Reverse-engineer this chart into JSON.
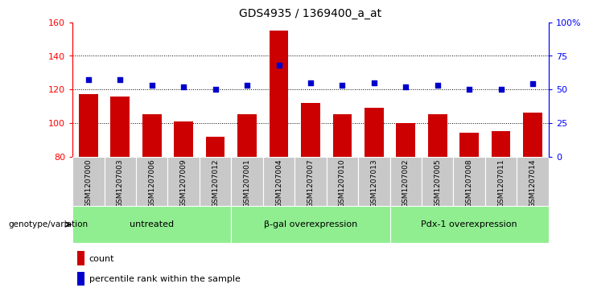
{
  "title": "GDS4935 / 1369400_a_at",
  "samples": [
    "GSM1207000",
    "GSM1207003",
    "GSM1207006",
    "GSM1207009",
    "GSM1207012",
    "GSM1207001",
    "GSM1207004",
    "GSM1207007",
    "GSM1207010",
    "GSM1207013",
    "GSM1207002",
    "GSM1207005",
    "GSM1207008",
    "GSM1207011",
    "GSM1207014"
  ],
  "counts": [
    117,
    116,
    105,
    101,
    92,
    105,
    155,
    112,
    105,
    109,
    100,
    105,
    94,
    95,
    106
  ],
  "percentiles": [
    57,
    57,
    53,
    52,
    50,
    53,
    68,
    55,
    53,
    55,
    52,
    53,
    50,
    50,
    54
  ],
  "groups": [
    {
      "label": "untreated",
      "start": 0,
      "end": 5
    },
    {
      "label": "β-gal overexpression",
      "start": 5,
      "end": 10
    },
    {
      "label": "Pdx-1 overexpression",
      "start": 10,
      "end": 15
    }
  ],
  "bar_color": "#cc0000",
  "dot_color": "#0000cc",
  "group_bg_color": "#90ee90",
  "sample_bg_color": "#c8c8c8",
  "ylim_left": [
    80,
    160
  ],
  "ylim_right": [
    0,
    100
  ],
  "yticks_left": [
    80,
    100,
    120,
    140,
    160
  ],
  "yticks_right": [
    0,
    25,
    50,
    75,
    100
  ],
  "yticklabels_right": [
    "0",
    "25",
    "50",
    "75",
    "100%"
  ],
  "grid_values": [
    100,
    120,
    140
  ],
  "bar_width": 0.6,
  "legend_count_label": "count",
  "legend_pct_label": "percentile rank within the sample",
  "xlabel_group": "genotype/variation"
}
